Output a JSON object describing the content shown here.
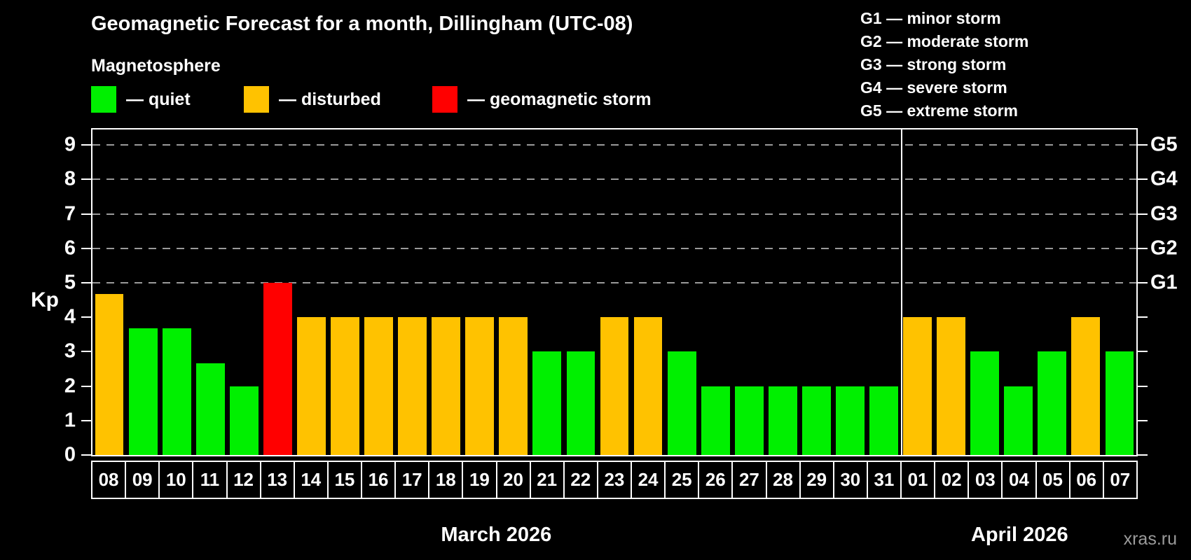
{
  "title": "Geomagnetic Forecast for a month, Dillingham (UTC-08)",
  "subtitle": "Magnetosphere",
  "legend": {
    "quiet": "— quiet",
    "disturbed": "— disturbed",
    "storm": "— geomagnetic storm"
  },
  "g_legend": [
    "G1 — minor storm",
    "G2 — moderate storm",
    "G3 — strong storm",
    "G4 — severe storm",
    "G5 — extreme storm"
  ],
  "axis": {
    "ylabel": "Kp",
    "yticks": [
      0,
      1,
      2,
      3,
      4,
      5,
      6,
      7,
      8,
      9
    ],
    "ymax": 9.45,
    "grid_levels": [
      5,
      6,
      7,
      8,
      9
    ],
    "right_labels": {
      "5": "G1",
      "6": "G2",
      "7": "G3",
      "8": "G4",
      "9": "G5"
    }
  },
  "colors": {
    "quiet": "#00F000",
    "disturbed": "#FFC200",
    "storm": "#FF0000",
    "grid": "#9a9a9a"
  },
  "months": [
    {
      "label": "March 2026",
      "days": 24
    },
    {
      "label": "April 2026",
      "days": 7
    }
  ],
  "watermark": "xras.ru",
  "chart_data": {
    "type": "bar",
    "title": "Geomagnetic Forecast for a month, Dillingham (UTC-08)",
    "xlabel": "",
    "ylabel": "Kp",
    "ylim": [
      0,
      9.45
    ],
    "grid": "dashed horizontal at Kp 5-9 (G1-G5)",
    "legend_position": "top-left states, top-right G-scale",
    "categories": [
      "08",
      "09",
      "10",
      "11",
      "12",
      "13",
      "14",
      "15",
      "16",
      "17",
      "18",
      "19",
      "20",
      "21",
      "22",
      "23",
      "24",
      "25",
      "26",
      "27",
      "28",
      "29",
      "30",
      "31",
      "01",
      "02",
      "03",
      "04",
      "05",
      "06",
      "07"
    ],
    "values": [
      4.67,
      3.67,
      3.67,
      2.67,
      2,
      5,
      4,
      4,
      4,
      4,
      4,
      4,
      4,
      3,
      3,
      4,
      4,
      3,
      2,
      2,
      2,
      2,
      2,
      2,
      4,
      4,
      3,
      2,
      3,
      4,
      3
    ],
    "states": [
      "disturbed",
      "quiet",
      "quiet",
      "quiet",
      "quiet",
      "storm",
      "disturbed",
      "disturbed",
      "disturbed",
      "disturbed",
      "disturbed",
      "disturbed",
      "disturbed",
      "quiet",
      "quiet",
      "disturbed",
      "disturbed",
      "quiet",
      "quiet",
      "quiet",
      "quiet",
      "quiet",
      "quiet",
      "quiet",
      "disturbed",
      "disturbed",
      "quiet",
      "quiet",
      "quiet",
      "disturbed",
      "quiet"
    ],
    "month_groups": [
      {
        "label": "March 2026",
        "count": 24
      },
      {
        "label": "April 2026",
        "count": 7
      }
    ]
  }
}
